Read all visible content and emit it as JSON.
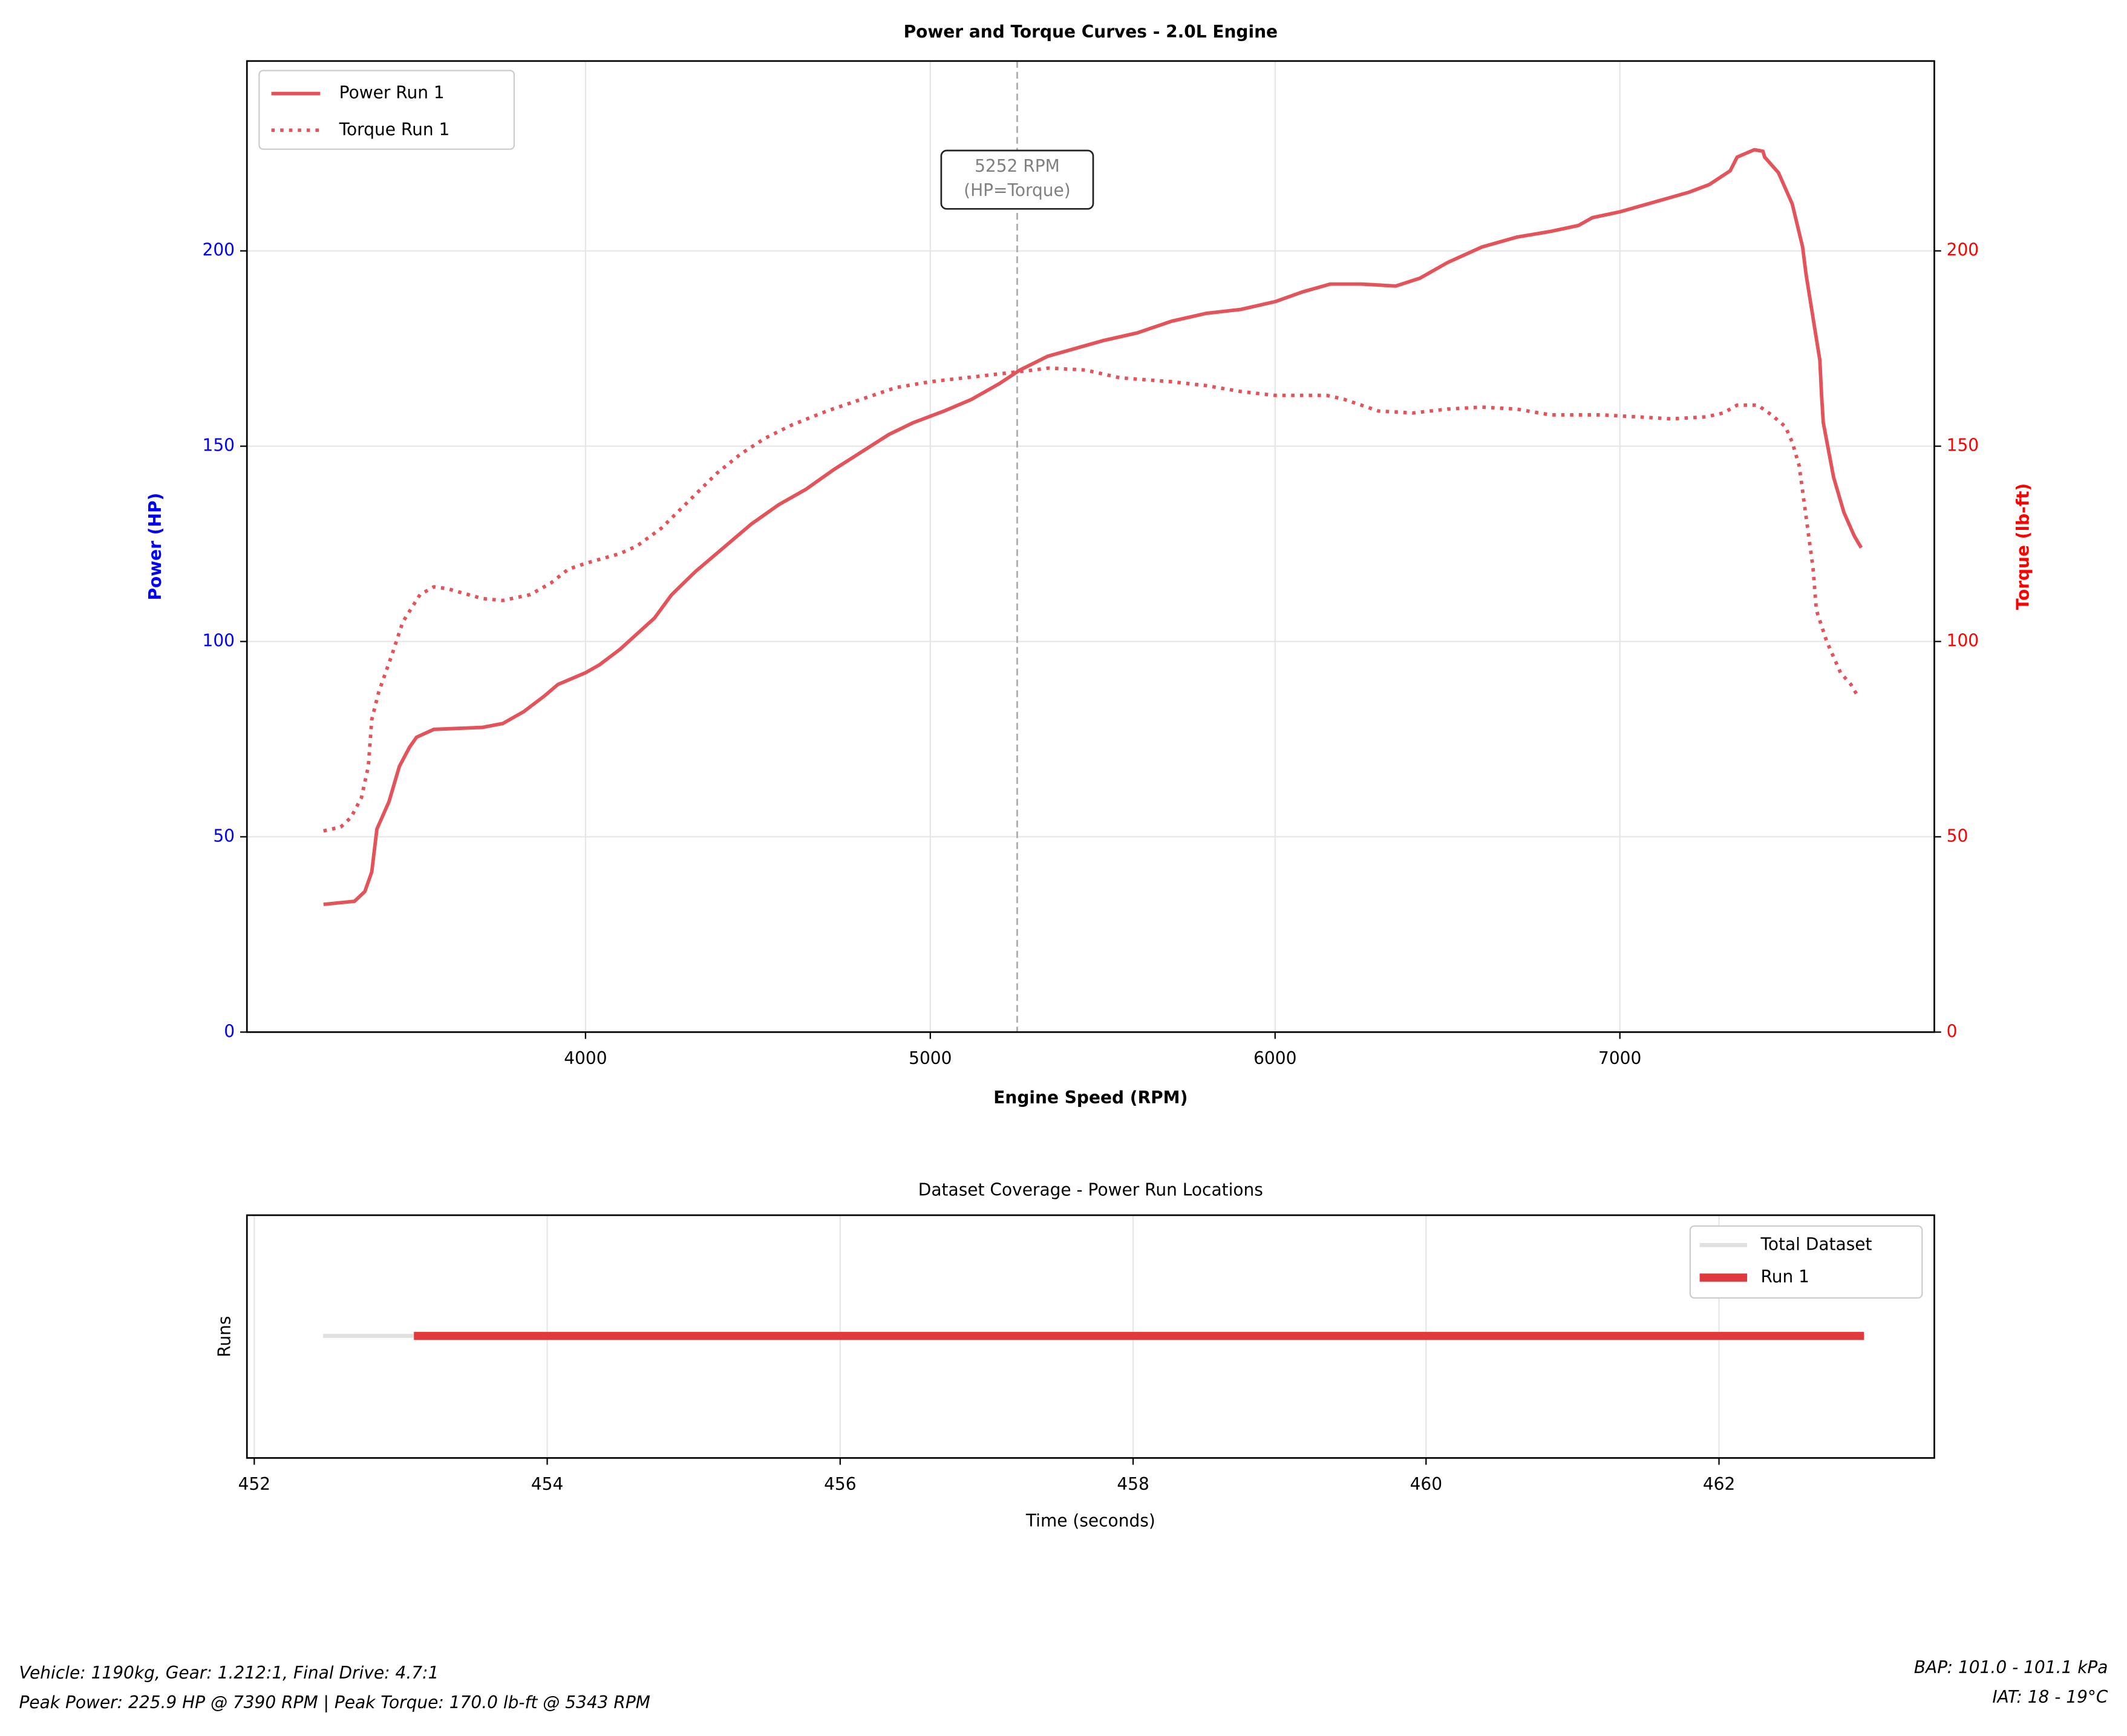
{
  "chart_data": [
    {
      "type": "line",
      "title": "Power and Torque Curves - 2.0L Engine",
      "xlabel": "Engine Speed (RPM)",
      "ylabel": "Power (HP)",
      "y2label": "Torque (lb-ft)",
      "xlim": [
        3018,
        7912
      ],
      "ylim": [
        0,
        248.6
      ],
      "y2lim": [
        0,
        248.6
      ],
      "xticks": [
        4000,
        5000,
        6000,
        7000
      ],
      "yticks": [
        0,
        50,
        100,
        150,
        200
      ],
      "y2ticks": [
        0,
        50,
        100,
        150,
        200
      ],
      "grid": true,
      "legend": "upper left",
      "ylabel_color": "#0000ff",
      "y2label_color": "#ff0000",
      "vline": 5252,
      "annotation": [
        "5252 RPM",
        "(HP=Torque)"
      ],
      "series": [
        {
          "name": "Power Run 1",
          "color": "#e5535a",
          "linestyle": "solid",
          "axis": "y",
          "x": [
            3240,
            3330,
            3360,
            3380,
            3395,
            3430,
            3460,
            3490,
            3510,
            3560,
            3700,
            3760,
            3820,
            3880,
            3920,
            4000,
            4040,
            4100,
            4150,
            4200,
            4250,
            4320,
            4400,
            4480,
            4560,
            4640,
            4720,
            4800,
            4880,
            4950,
            5040,
            5120,
            5200,
            5260,
            5340,
            5420,
            5500,
            5600,
            5700,
            5800,
            5900,
            6000,
            6080,
            6160,
            6250,
            6350,
            6420,
            6500,
            6600,
            6700,
            6800,
            6880,
            6920,
            7000,
            7100,
            7200,
            7260,
            7320,
            7340,
            7390,
            7415,
            7420,
            7460,
            7500,
            7530,
            7540,
            7560,
            7580,
            7585,
            7590,
            7620,
            7650,
            7680,
            7700
          ],
          "values": [
            32.7,
            33.5,
            36,
            41,
            52,
            59,
            68,
            73,
            75.5,
            77.5,
            78,
            79,
            82,
            86,
            89,
            92,
            94,
            98,
            102,
            106,
            112,
            118,
            124,
            130,
            135,
            139,
            144,
            148.5,
            153,
            156,
            159,
            162,
            166,
            169.5,
            173,
            175,
            177,
            179,
            182,
            184,
            185,
            187,
            189.5,
            191.5,
            191.5,
            191,
            193,
            197,
            201,
            203.5,
            205,
            206.5,
            208.5,
            210,
            212.5,
            215,
            217,
            220.5,
            224,
            225.9,
            225.5,
            224,
            220,
            212,
            201,
            194,
            183,
            172,
            163,
            156,
            142,
            133,
            127,
            124
          ]
        },
        {
          "name": "Torque Run 1",
          "color": "#e5535a",
          "linestyle": "dotted",
          "axis": "y2",
          "x": [
            3240,
            3290,
            3320,
            3350,
            3370,
            3380,
            3400,
            3440,
            3470,
            3520,
            3560,
            3600,
            3700,
            3760,
            3840,
            3900,
            3950,
            4000,
            4100,
            4150,
            4220,
            4300,
            4380,
            4450,
            4520,
            4600,
            4700,
            4800,
            4900,
            5000,
            5100,
            5200,
            5300,
            5343,
            5450,
            5550,
            5700,
            5800,
            5900,
            6000,
            6150,
            6200,
            6300,
            6400,
            6500,
            6600,
            6700,
            6800,
            6950,
            7050,
            7150,
            7250,
            7300,
            7340,
            7400,
            7440,
            7480,
            7500,
            7520,
            7540,
            7560,
            7570,
            7600,
            7640,
            7670,
            7690
          ],
          "values": [
            51.5,
            52.5,
            55,
            60,
            68,
            80,
            87,
            97,
            105,
            112,
            114,
            113.5,
            111,
            110.5,
            112,
            115,
            118.5,
            120,
            122.5,
            124.5,
            129,
            136,
            143,
            148,
            152,
            155.5,
            159,
            162,
            165,
            166.5,
            167.5,
            168.5,
            169.5,
            170,
            169.5,
            167.5,
            166.5,
            165.5,
            164,
            163,
            163,
            162,
            159,
            158.5,
            159.5,
            160,
            159.5,
            158,
            158,
            157.5,
            157,
            157.5,
            158.5,
            160.5,
            160.5,
            158,
            155,
            151,
            145,
            132,
            119,
            108,
            100,
            92,
            89,
            86
          ]
        }
      ]
    },
    {
      "type": "timeline",
      "title": "Dataset Coverage - Power Run Locations",
      "xlabel": "Time (seconds)",
      "ylabel": "Runs",
      "xlim": [
        451.95,
        463.47
      ],
      "xticks": [
        452,
        454,
        456,
        458,
        460,
        462
      ],
      "grid": true,
      "legend": "upper right",
      "series": [
        {
          "name": "Total Dataset",
          "color": "#e0e0e0",
          "x": [
            452.47,
            462.99
          ]
        },
        {
          "name": "Run 1",
          "color": "#e0393e",
          "x": [
            453.09,
            462.99
          ]
        }
      ]
    }
  ],
  "footer": {
    "left": [
      "Vehicle: 1190kg, Gear: 1.212:1, Final Drive: 4.7:1",
      "Peak Power: 225.9 HP @ 7390 RPM | Peak Torque: 170.0 lb-ft @ 5343 RPM"
    ],
    "right": [
      "BAP: 101.0 - 101.1 kPa",
      "IAT: 18 - 19°C"
    ]
  }
}
